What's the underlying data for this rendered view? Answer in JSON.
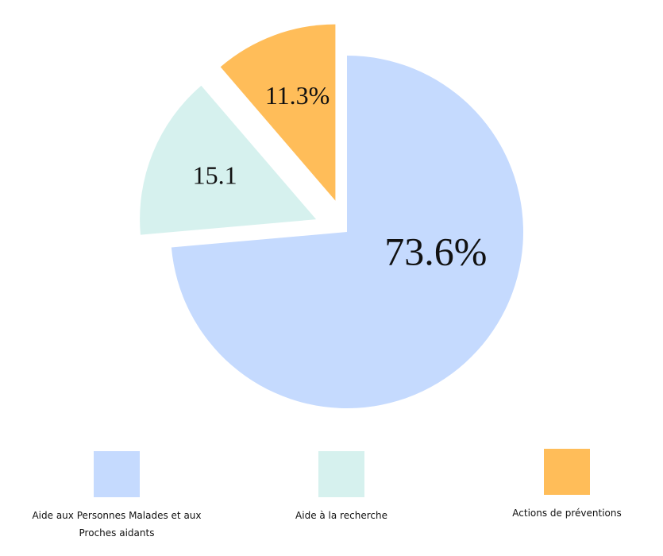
{
  "chart_data": {
    "type": "pie",
    "categories": [
      "Aide aux Personnes Malades et aux Proches aidants",
      "Aide à la recherche",
      "Actions de préventions"
    ],
    "values": [
      73.6,
      15.1,
      11.3
    ],
    "value_labels": [
      "73.6%",
      "15.1",
      "11.3%"
    ],
    "colors": [
      "#c5dafe",
      "#d6f1ee",
      "#ffbd59"
    ],
    "explode": [
      false,
      true,
      true
    ],
    "legend": "bottom"
  }
}
